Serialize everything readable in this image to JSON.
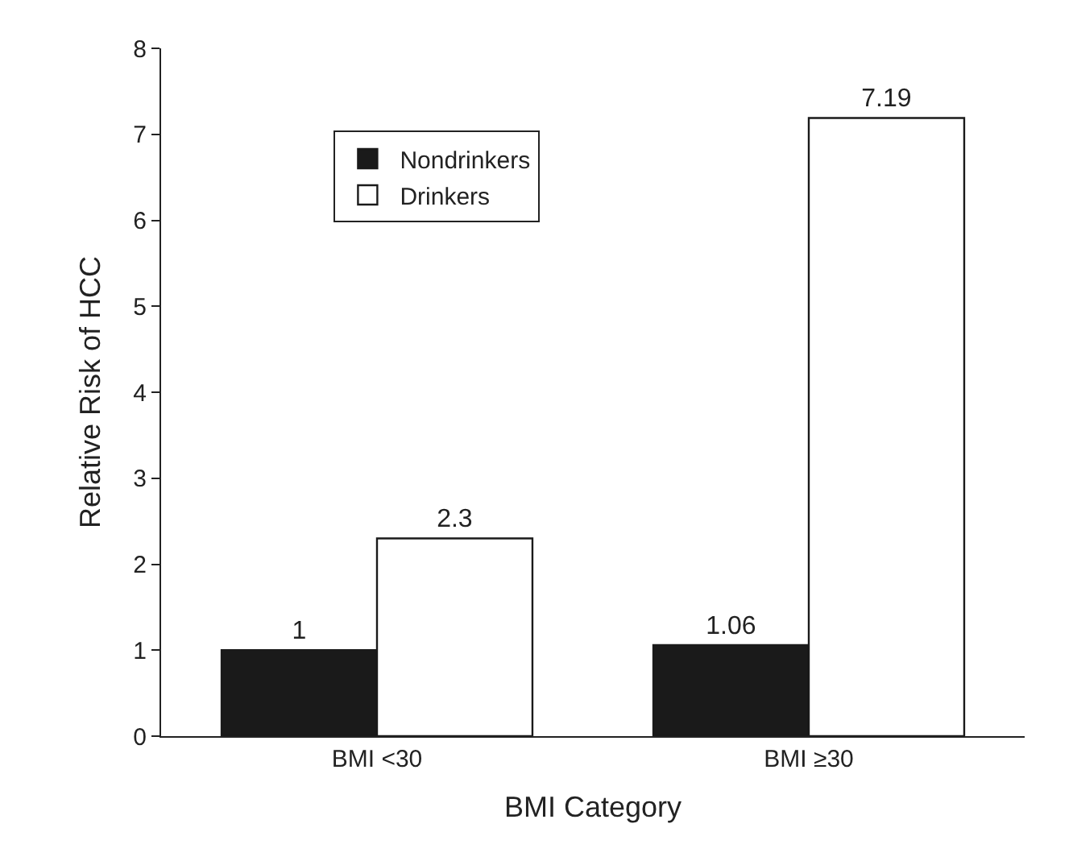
{
  "chart_data": {
    "type": "bar",
    "xlabel": "BMI Category",
    "ylabel": "Relative Risk of HCC",
    "categories": [
      "BMI <30",
      "BMI ≥30"
    ],
    "series": [
      {
        "name": "Nondrinkers",
        "color": "#1a1a1a",
        "values": [
          1,
          1.06
        ]
      },
      {
        "name": "Drinkers",
        "color": "#ffffff",
        "values": [
          2.3,
          7.19
        ]
      }
    ],
    "ylim": [
      0,
      8
    ],
    "yticks": [
      0,
      1,
      2,
      3,
      4,
      5,
      6,
      7,
      8
    ],
    "legend": "top left",
    "data_labels": true
  }
}
